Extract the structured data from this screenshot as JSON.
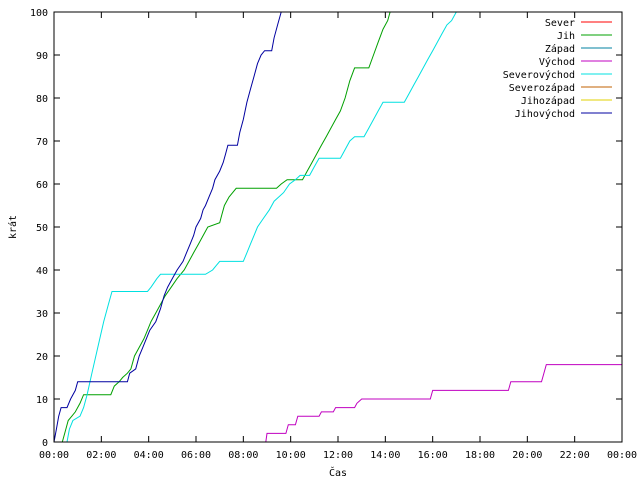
{
  "chart_data": {
    "type": "line",
    "title": "",
    "xlabel": "Čas",
    "ylabel": "krát",
    "xlim": [
      0,
      24
    ],
    "ylim": [
      0,
      100
    ],
    "grid": false,
    "legend_position": "top-right",
    "x_ticks": [
      {
        "value": 0,
        "label": "00:00"
      },
      {
        "value": 2,
        "label": "02:00"
      },
      {
        "value": 4,
        "label": "04:00"
      },
      {
        "value": 6,
        "label": "06:00"
      },
      {
        "value": 8,
        "label": "08:00"
      },
      {
        "value": 10,
        "label": "10:00"
      },
      {
        "value": 12,
        "label": "12:00"
      },
      {
        "value": 14,
        "label": "14:00"
      },
      {
        "value": 16,
        "label": "16:00"
      },
      {
        "value": 18,
        "label": "18:00"
      },
      {
        "value": 20,
        "label": "20:00"
      },
      {
        "value": 22,
        "label": "22:00"
      },
      {
        "value": 24,
        "label": "00:00"
      }
    ],
    "y_ticks": [
      0,
      10,
      20,
      30,
      40,
      50,
      60,
      70,
      80,
      90,
      100
    ],
    "series": [
      {
        "name": "Sever",
        "color": "#ff0000",
        "points": []
      },
      {
        "name": "Jih",
        "color": "#00a000",
        "points": [
          [
            0.35,
            0
          ],
          [
            0.45,
            2
          ],
          [
            0.6,
            5
          ],
          [
            0.75,
            6
          ],
          [
            0.9,
            7
          ],
          [
            1.1,
            9
          ],
          [
            1.25,
            11
          ],
          [
            2.4,
            11
          ],
          [
            2.55,
            13
          ],
          [
            2.75,
            14
          ],
          [
            2.9,
            15
          ],
          [
            3.1,
            16
          ],
          [
            3.25,
            17
          ],
          [
            3.4,
            20
          ],
          [
            3.6,
            22
          ],
          [
            3.8,
            24
          ],
          [
            3.95,
            26
          ],
          [
            4.1,
            28
          ],
          [
            4.3,
            30
          ],
          [
            4.5,
            32
          ],
          [
            4.7,
            34
          ],
          [
            4.95,
            36
          ],
          [
            5.2,
            38
          ],
          [
            5.5,
            40
          ],
          [
            5.7,
            42
          ],
          [
            5.9,
            44
          ],
          [
            6.1,
            46
          ],
          [
            6.3,
            48
          ],
          [
            6.5,
            50
          ],
          [
            7.0,
            51
          ],
          [
            7.1,
            53
          ],
          [
            7.2,
            55
          ],
          [
            7.4,
            57
          ],
          [
            7.55,
            58
          ],
          [
            7.7,
            59
          ],
          [
            9.4,
            59
          ],
          [
            9.6,
            60
          ],
          [
            9.85,
            61
          ],
          [
            10.5,
            61
          ],
          [
            10.7,
            63
          ],
          [
            10.9,
            65
          ],
          [
            11.1,
            67
          ],
          [
            11.3,
            69
          ],
          [
            11.5,
            71
          ],
          [
            11.7,
            73
          ],
          [
            11.9,
            75
          ],
          [
            12.1,
            77
          ],
          [
            12.3,
            80
          ],
          [
            12.5,
            84
          ],
          [
            12.7,
            87
          ],
          [
            13.3,
            87
          ],
          [
            13.5,
            90
          ],
          [
            13.7,
            93
          ],
          [
            13.9,
            96
          ],
          [
            14.1,
            98
          ],
          [
            14.2,
            100
          ]
        ]
      },
      {
        "name": "Západ",
        "color": "#0080a0",
        "points": []
      },
      {
        "name": "Východ",
        "color": "#c000c0",
        "points": [
          [
            8.95,
            0
          ],
          [
            9.0,
            2
          ],
          [
            9.8,
            2
          ],
          [
            9.9,
            4
          ],
          [
            10.2,
            4
          ],
          [
            10.3,
            6
          ],
          [
            11.2,
            6
          ],
          [
            11.3,
            7
          ],
          [
            11.8,
            7
          ],
          [
            11.9,
            8
          ],
          [
            12.7,
            8
          ],
          [
            12.8,
            9
          ],
          [
            13.0,
            10
          ],
          [
            15.9,
            10
          ],
          [
            16.0,
            12
          ],
          [
            19.2,
            12
          ],
          [
            19.3,
            14
          ],
          [
            20.6,
            14
          ],
          [
            20.7,
            16
          ],
          [
            20.8,
            18
          ],
          [
            24.0,
            18
          ]
        ]
      },
      {
        "name": "Severovýchod",
        "color": "#00e0e0",
        "points": [
          [
            0.55,
            0
          ],
          [
            0.65,
            3
          ],
          [
            0.8,
            5
          ],
          [
            1.1,
            6
          ],
          [
            1.25,
            8
          ],
          [
            1.4,
            11
          ],
          [
            1.6,
            16
          ],
          [
            1.85,
            22
          ],
          [
            2.1,
            28
          ],
          [
            2.3,
            32
          ],
          [
            2.45,
            35
          ],
          [
            3.95,
            35
          ],
          [
            4.1,
            36
          ],
          [
            4.35,
            38
          ],
          [
            4.5,
            39
          ],
          [
            6.4,
            39
          ],
          [
            6.7,
            40
          ],
          [
            6.85,
            41
          ],
          [
            7.0,
            42
          ],
          [
            8.0,
            42
          ],
          [
            8.15,
            44
          ],
          [
            8.3,
            46
          ],
          [
            8.45,
            48
          ],
          [
            8.6,
            50
          ],
          [
            8.85,
            52
          ],
          [
            9.1,
            54
          ],
          [
            9.3,
            56
          ],
          [
            9.7,
            58
          ],
          [
            9.95,
            60
          ],
          [
            10.2,
            61
          ],
          [
            10.4,
            62
          ],
          [
            10.8,
            62
          ],
          [
            11.0,
            64
          ],
          [
            11.2,
            66
          ],
          [
            12.1,
            66
          ],
          [
            12.3,
            68
          ],
          [
            12.5,
            70
          ],
          [
            12.7,
            71
          ],
          [
            13.1,
            71
          ],
          [
            13.3,
            73
          ],
          [
            13.5,
            75
          ],
          [
            13.7,
            77
          ],
          [
            13.9,
            79
          ],
          [
            14.8,
            79
          ],
          [
            15.0,
            81
          ],
          [
            15.2,
            83
          ],
          [
            15.4,
            85
          ],
          [
            15.6,
            87
          ],
          [
            15.8,
            89
          ],
          [
            16.0,
            91
          ],
          [
            16.2,
            93
          ],
          [
            16.4,
            95
          ],
          [
            16.6,
            97
          ],
          [
            16.8,
            98
          ],
          [
            17.0,
            100
          ]
        ]
      },
      {
        "name": "Severozápad",
        "color": "#c06000",
        "points": []
      },
      {
        "name": "Jihozápad",
        "color": "#e0d000",
        "points": []
      },
      {
        "name": "Jihovýchod",
        "color": "#0000a0",
        "points": [
          [
            0.0,
            0
          ],
          [
            0.1,
            3
          ],
          [
            0.2,
            6
          ],
          [
            0.3,
            8
          ],
          [
            0.55,
            8
          ],
          [
            0.7,
            10
          ],
          [
            0.9,
            12
          ],
          [
            1.0,
            14
          ],
          [
            3.1,
            14
          ],
          [
            3.2,
            16
          ],
          [
            3.45,
            17
          ],
          [
            3.6,
            20
          ],
          [
            3.75,
            22
          ],
          [
            3.9,
            24
          ],
          [
            4.05,
            26
          ],
          [
            4.3,
            28
          ],
          [
            4.5,
            31
          ],
          [
            4.65,
            34
          ],
          [
            4.8,
            36
          ],
          [
            5.0,
            38
          ],
          [
            5.2,
            40
          ],
          [
            5.45,
            42
          ],
          [
            5.6,
            44
          ],
          [
            5.75,
            46
          ],
          [
            5.9,
            48
          ],
          [
            6.0,
            50
          ],
          [
            6.2,
            52
          ],
          [
            6.3,
            54
          ],
          [
            6.4,
            55
          ],
          [
            6.55,
            57
          ],
          [
            6.7,
            59
          ],
          [
            6.8,
            61
          ],
          [
            7.0,
            63
          ],
          [
            7.15,
            65
          ],
          [
            7.25,
            67
          ],
          [
            7.35,
            69
          ],
          [
            7.75,
            69
          ],
          [
            7.85,
            72
          ],
          [
            8.0,
            75
          ],
          [
            8.15,
            79
          ],
          [
            8.3,
            82
          ],
          [
            8.45,
            85
          ],
          [
            8.6,
            88
          ],
          [
            8.75,
            90
          ],
          [
            8.9,
            91
          ],
          [
            9.2,
            91
          ],
          [
            9.3,
            94
          ],
          [
            9.45,
            97
          ],
          [
            9.6,
            100
          ]
        ]
      }
    ]
  }
}
